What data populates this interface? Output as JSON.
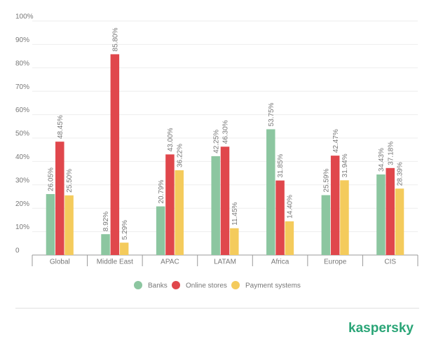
{
  "chart_data": {
    "type": "bar",
    "categories": [
      "Global",
      "Middle East",
      "APAC",
      "LATAM",
      "Africa",
      "Europe",
      "CIS"
    ],
    "series": [
      {
        "name": "Banks",
        "color": "#8cc6a0",
        "values": [
          26.05,
          8.92,
          20.79,
          42.25,
          53.75,
          25.59,
          34.43
        ],
        "value_labels": [
          "26.05%",
          "8.92%",
          "20.79%",
          "42.25%",
          "53.75%",
          "25.59%",
          "34.43%"
        ]
      },
      {
        "name": "Online stores",
        "color": "#e0474c",
        "values": [
          48.45,
          85.8,
          43.0,
          46.3,
          31.85,
          42.47,
          37.18
        ],
        "value_labels": [
          "48.45%",
          "85.80%",
          "43.00%",
          "46.30%",
          "31.85%",
          "42.47%",
          "37.18%"
        ]
      },
      {
        "name": "Payment systems",
        "color": "#f4cb5c",
        "values": [
          25.5,
          5.29,
          36.22,
          11.45,
          14.4,
          31.94,
          28.39
        ],
        "value_labels": [
          "25.50%",
          "5.29%",
          "36.22%",
          "11.45%",
          "14.40%",
          "31.94%",
          "28.39%"
        ]
      }
    ],
    "ylim": [
      0,
      100
    ],
    "yticks": [
      0,
      {
        "value": 10,
        "label": "10%"
      },
      {
        "value": 20,
        "label": "20%"
      },
      {
        "value": 30,
        "label": "30%"
      },
      {
        "value": 40,
        "label": "40%"
      },
      {
        "value": 50,
        "label": "50%"
      },
      {
        "value": 60,
        "label": "60%"
      },
      {
        "value": 70,
        "label": "70%"
      },
      {
        "value": 80,
        "label": "80%"
      },
      {
        "value": 90,
        "label": "90%"
      },
      {
        "value": 100,
        "label": "100%"
      }
    ],
    "grid": true,
    "legend": "bottom"
  },
  "logo": "kaspersky"
}
